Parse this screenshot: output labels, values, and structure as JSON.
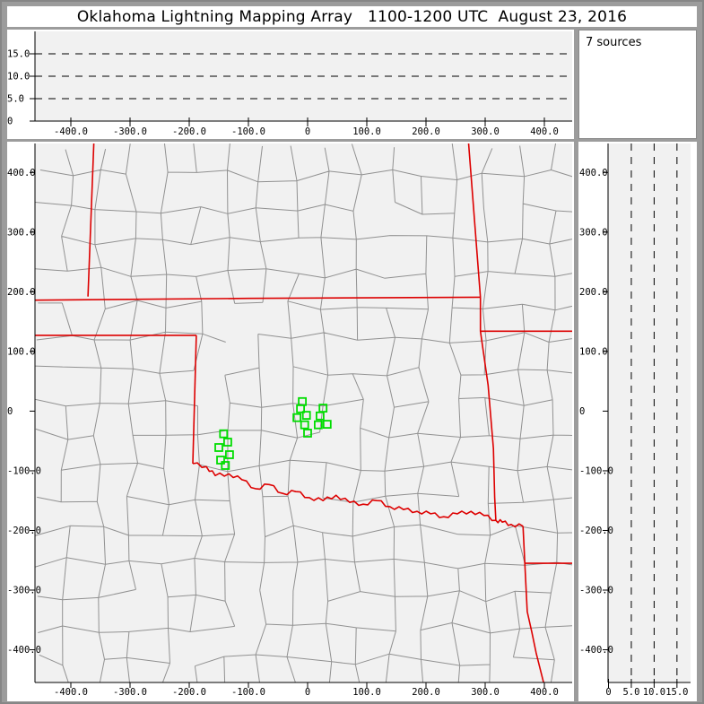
{
  "title": "Oklahoma Lightning Mapping Array   1100-1200 UTC  August 23, 2016",
  "sources_panel": {
    "label": "7 sources"
  },
  "colors": {
    "window_frame": "#9c9c9c",
    "panel_bg": "#ffffff",
    "plot_bg": "#f1f1f1",
    "county_line": "#919191",
    "state_border": "#dd0000",
    "source_marker": "#00dd00",
    "axis": "#000000"
  },
  "chart_data": [
    {
      "id": "altitude-ew",
      "type": "scatter",
      "xlim": [
        -461,
        447
      ],
      "ylim": [
        0,
        20
      ],
      "dashed_altitudes": [
        5,
        10,
        15
      ],
      "alt_ticks": [
        {
          "value": 0,
          "label": "0"
        },
        {
          "value": 5,
          "label": "5.0"
        },
        {
          "value": 10,
          "label": "10.0"
        },
        {
          "value": 15,
          "label": "15.0"
        }
      ],
      "x_ticks": [
        {
          "value": -400,
          "label": "-400.0"
        },
        {
          "value": -300,
          "label": "-300.0"
        },
        {
          "value": -200,
          "label": "-200.0"
        },
        {
          "value": -100,
          "label": "-100.0"
        },
        {
          "value": 0,
          "label": "0"
        },
        {
          "value": 100,
          "label": "100.0"
        },
        {
          "value": 200,
          "label": "200.0"
        },
        {
          "value": 300,
          "label": "300.0"
        },
        {
          "value": 400,
          "label": "400.0"
        }
      ],
      "points": []
    },
    {
      "id": "plan-view",
      "type": "scatter",
      "xlim": [
        -461,
        447
      ],
      "ylim": [
        -455,
        449
      ],
      "x_ticks": [
        {
          "value": -400,
          "label": "-400.0"
        },
        {
          "value": -300,
          "label": "-300.0"
        },
        {
          "value": -200,
          "label": "-200.0"
        },
        {
          "value": -100,
          "label": "-100.0"
        },
        {
          "value": 0,
          "label": "0"
        },
        {
          "value": 100,
          "label": "100.0"
        },
        {
          "value": 200,
          "label": "200.0"
        },
        {
          "value": 300,
          "label": "300.0"
        },
        {
          "value": 400,
          "label": "400.0"
        }
      ],
      "y_ticks": [
        {
          "value": 400,
          "label": "400.0"
        },
        {
          "value": 300,
          "label": "300.0"
        },
        {
          "value": 200,
          "label": "200.0"
        },
        {
          "value": 100,
          "label": "100.0"
        },
        {
          "value": 0,
          "label": "0"
        },
        {
          "value": -100,
          "label": "-100.0"
        },
        {
          "value": -200,
          "label": "-200.0"
        },
        {
          "value": -300,
          "label": "-300.0"
        },
        {
          "value": -400,
          "label": "-400.0"
        }
      ],
      "points": [
        [
          -9,
          16
        ],
        [
          -12,
          4
        ],
        [
          -18,
          -11
        ],
        [
          -2,
          -7
        ],
        [
          26,
          5
        ],
        [
          21,
          -8
        ],
        [
          -5,
          -23
        ],
        [
          18,
          -23
        ],
        [
          33,
          -22
        ],
        [
          0,
          -37
        ],
        [
          -142,
          -38
        ],
        [
          -135,
          -52
        ],
        [
          -150,
          -61
        ],
        [
          -132,
          -73
        ],
        [
          -147,
          -82
        ],
        [
          -139,
          -91
        ]
      ],
      "state_borders": [
        {
          "name": "colorado-kansas",
          "points": [
            [
              -361,
              452
            ],
            [
              -371,
              192
            ]
          ]
        },
        {
          "name": "kansas-oklahoma",
          "points": [
            [
              -461,
              186
            ],
            [
              -100,
              189
            ],
            [
              292,
              191
            ]
          ]
        },
        {
          "name": "kansas-missouri",
          "points": [
            [
              272,
              449
            ],
            [
              292,
              191
            ]
          ]
        },
        {
          "name": "oklahoma-east",
          "points": [
            [
              292,
              191
            ],
            [
              292,
              134
            ],
            [
              305,
              43
            ],
            [
              314,
              -63
            ],
            [
              316,
              -145
            ],
            [
              318,
              -183
            ]
          ]
        },
        {
          "name": "missouri-arkansas",
          "points": [
            [
              292,
              134
            ],
            [
              447,
              134
            ]
          ]
        },
        {
          "name": "oklahoma-panhandle-south",
          "points": [
            [
              -461,
              127
            ],
            [
              -188,
              127
            ]
          ]
        },
        {
          "name": "texas-oklahoma-100w",
          "points": [
            [
              -188,
              127
            ],
            [
              -194,
              -88
            ]
          ]
        },
        {
          "name": "red-river",
          "wiggly": true,
          "points": [
            [
              -194,
              -88
            ],
            [
              -171,
              -93
            ],
            [
              -156,
              -108
            ],
            [
              -133,
              -105
            ],
            [
              -111,
              -115
            ],
            [
              -88,
              -130
            ],
            [
              -65,
              -123
            ],
            [
              -42,
              -138
            ],
            [
              -20,
              -135
            ],
            [
              3,
              -145
            ],
            [
              26,
              -150
            ],
            [
              48,
              -141
            ],
            [
              71,
              -153
            ],
            [
              94,
              -156
            ],
            [
              117,
              -150
            ],
            [
              139,
              -160
            ],
            [
              162,
              -165
            ],
            [
              185,
              -168
            ],
            [
              208,
              -172
            ],
            [
              230,
              -177
            ],
            [
              253,
              -172
            ],
            [
              276,
              -168
            ],
            [
              298,
              -175
            ],
            [
              318,
              -183
            ],
            [
              329,
              -186
            ],
            [
              344,
              -190
            ],
            [
              364,
              -193
            ]
          ]
        },
        {
          "name": "texas-arkansas",
          "points": [
            [
              364,
              -193
            ],
            [
              367,
              -255
            ]
          ]
        },
        {
          "name": "arkansas-louisiana",
          "points": [
            [
              367,
              -255
            ],
            [
              447,
              -255
            ]
          ]
        },
        {
          "name": "texas-louisiana",
          "points": [
            [
              367,
              -255
            ],
            [
              371,
              -336
            ],
            [
              379,
              -371
            ],
            [
              386,
              -405
            ],
            [
              399,
              -456
            ]
          ]
        }
      ],
      "county_grid": true
    },
    {
      "id": "altitude-ns",
      "type": "scatter",
      "xlim": [
        0,
        18
      ],
      "ylim": [
        -455,
        449
      ],
      "dashed_altitudes": [
        5,
        10,
        15
      ],
      "alt_ticks": [
        {
          "value": 0,
          "label": "0"
        },
        {
          "value": 5,
          "label": "5.0"
        },
        {
          "value": 10,
          "label": "10.0"
        },
        {
          "value": 15,
          "label": "15.0"
        }
      ],
      "y_ticks": [
        {
          "value": 400,
          "label": "400.0"
        },
        {
          "value": 300,
          "label": "300.0"
        },
        {
          "value": 200,
          "label": "200.0"
        },
        {
          "value": 100,
          "label": "100.0"
        },
        {
          "value": 0,
          "label": "0"
        },
        {
          "value": -100,
          "label": "-100.0"
        },
        {
          "value": -200,
          "label": "-200.0"
        },
        {
          "value": -300,
          "label": "-300.0"
        },
        {
          "value": -400,
          "label": "-400.0"
        }
      ],
      "points": []
    }
  ]
}
